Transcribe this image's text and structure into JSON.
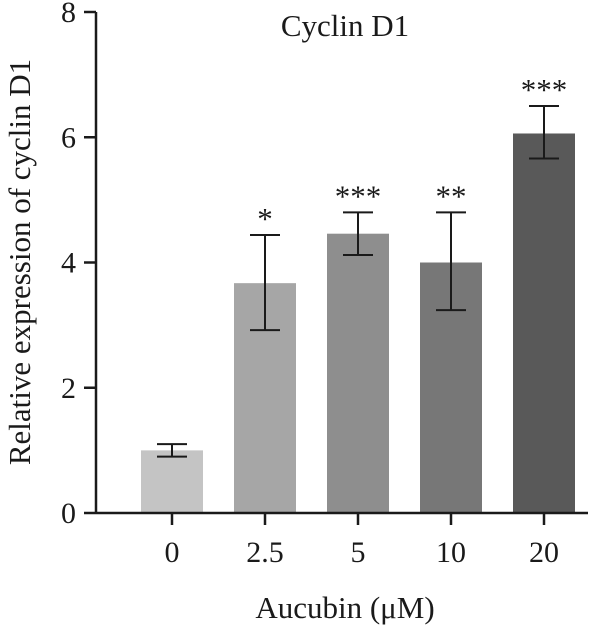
{
  "chart_data": {
    "type": "bar",
    "title": "Cyclin D1",
    "xlabel": "Aucubin (μM)",
    "ylabel": "Relative expression of cyclin D1",
    "categories": [
      "0",
      "2.5",
      "5",
      "10",
      "20"
    ],
    "values": [
      1.0,
      3.67,
      4.46,
      4.0,
      6.06
    ],
    "error_low": [
      0.9,
      2.92,
      4.12,
      3.24,
      5.66
    ],
    "error_high": [
      1.1,
      4.44,
      4.8,
      4.8,
      6.5
    ],
    "significance": [
      "",
      "*",
      "***",
      "**",
      "***"
    ],
    "bar_colors": [
      "#c4c4c4",
      "#a6a6a6",
      "#8e8e8e",
      "#777777",
      "#595959"
    ],
    "ylim": [
      0,
      8
    ],
    "yticks": [
      "0",
      "2",
      "4",
      "6",
      "8"
    ],
    "grid": false,
    "legend": false
  }
}
